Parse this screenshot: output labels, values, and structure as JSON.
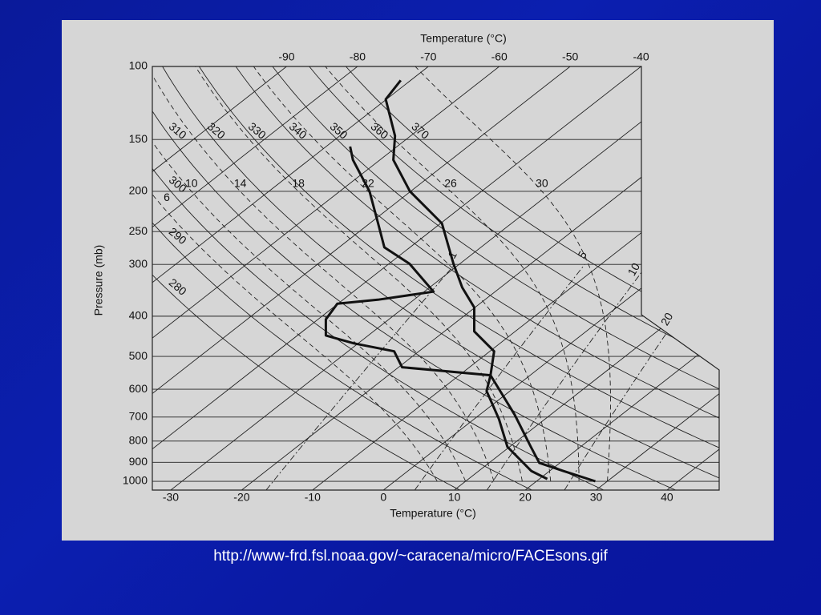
{
  "caption": "http://www-frd.fsl.noaa.gov/~caracena/micro/FACEsons.gif",
  "chart_data": {
    "type": "skew-t",
    "xlabel": "Temperature (°C)",
    "x2label": "Temperature (°C)",
    "ylabel": "Pressure (mb)",
    "log_y": true,
    "ylim": [
      1050,
      100
    ],
    "xlim": [
      -32.6,
      47.7
    ],
    "yticks": [
      100,
      150,
      200,
      250,
      300,
      400,
      500,
      600,
      700,
      800,
      900,
      1000
    ],
    "xticks": [
      -30,
      -20,
      -10,
      0,
      10,
      20,
      30,
      40
    ],
    "x2ticks": [
      -90,
      -80,
      -70,
      -60,
      -50,
      -40
    ],
    "dry_adiabats": [
      280,
      290,
      300,
      310,
      320,
      330,
      340,
      350,
      360,
      370
    ],
    "moist_adiabats": [
      6,
      10,
      14,
      18,
      22,
      26,
      30
    ],
    "mixing_ratios": [
      1,
      5,
      10,
      20
    ],
    "series": [
      {
        "color": "#111111",
        "pressure": [
          108,
          120,
          147,
          168,
          200,
          239,
          299,
          341,
          381,
          435,
          486,
          555,
          692,
          826,
          903,
          944,
          1000
        ],
        "temperature": [
          -71.4,
          -70.1,
          -62.2,
          -58.1,
          -50.1,
          -39.8,
          -30.9,
          -25.4,
          -20.1,
          -15.8,
          -9.4,
          -5.6,
          5,
          13,
          17.1,
          21.9,
          28.3
        ]
      },
      {
        "color": "#111111",
        "pressure": [
          156,
          168,
          200,
          239,
          273,
          299,
          349,
          365,
          373,
          407,
          445,
          465,
          486,
          531,
          555,
          606,
          708,
          826,
          944,
          987
        ],
        "temperature": [
          -66.6,
          -63.8,
          -55.8,
          -48.8,
          -43.6,
          -37.1,
          -28.7,
          -35.1,
          -40.1,
          -38.9,
          -36,
          -30.6,
          -23.5,
          -19.5,
          -5.6,
          -3.3,
          3.5,
          9.7,
          17.4,
          21.1
        ]
      }
    ]
  }
}
